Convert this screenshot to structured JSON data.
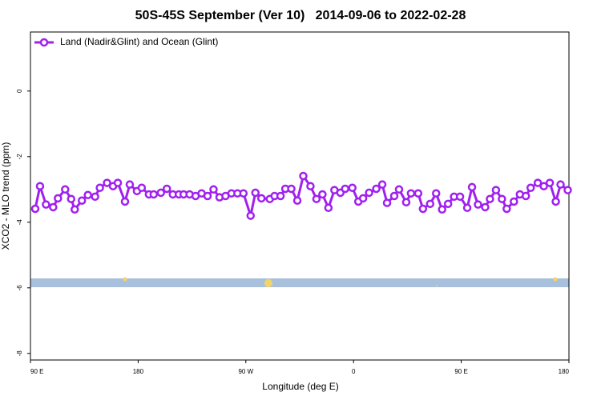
{
  "chart_data": {
    "type": "line",
    "title": "50S-45S September (Ver 10)   2014-09-06 to 2022-02-28",
    "xlabel": "Longitude (deg E)",
    "ylabel": "XCO2 - MLO trend (ppm)",
    "legend": "upper left",
    "xlim": [
      90,
      540
    ],
    "ylim": [
      -8.2,
      1.8
    ],
    "xticks": [
      {
        "value": 90,
        "label": "90 E"
      },
      180,
      {
        "value": 270,
        "label": "90 W"
      },
      {
        "value": 360,
        "label": "0"
      },
      {
        "value": 450,
        "label": "90 E"
      },
      {
        "value": 540,
        "label": "180"
      }
    ],
    "yticks": [
      0,
      -2,
      -4,
      -6,
      -8
    ],
    "x": [
      94,
      98,
      103,
      109,
      113,
      119,
      124,
      127,
      133,
      138,
      144,
      148,
      154,
      159,
      163,
      169,
      173,
      179,
      183,
      189,
      193,
      199,
      204,
      209,
      214,
      218,
      223,
      228,
      233,
      238,
      243,
      248,
      253,
      258,
      263,
      268,
      274,
      278,
      283,
      290,
      294,
      299,
      303,
      308,
      313,
      318,
      324,
      329,
      334,
      339,
      344,
      349,
      353,
      359,
      364,
      368,
      373,
      379,
      384,
      388,
      394,
      398,
      404,
      408,
      414,
      418,
      424,
      429,
      434,
      439,
      444,
      449,
      455,
      459,
      464,
      470,
      474,
      479,
      484,
      488,
      494,
      499,
      504,
      508,
      514,
      519,
      524,
      529,
      533,
      539
    ],
    "series": [
      {
        "name": "Land (Nadir&Glint) and Ocean (Glint)",
        "color": "#a020f0",
        "values": [
          -3.59,
          -2.9,
          -3.46,
          -3.54,
          -3.27,
          -3.0,
          -3.29,
          -3.61,
          -3.34,
          -3.17,
          -3.22,
          -2.95,
          -2.8,
          -2.9,
          -2.8,
          -3.37,
          -2.85,
          -3.05,
          -2.95,
          -3.15,
          -3.15,
          -3.1,
          -2.98,
          -3.15,
          -3.15,
          -3.15,
          -3.15,
          -3.2,
          -3.12,
          -3.2,
          -3.0,
          -3.24,
          -3.2,
          -3.12,
          -3.12,
          -3.12,
          -3.8,
          -3.1,
          -3.27,
          -3.29,
          -3.2,
          -3.2,
          -2.98,
          -2.98,
          -3.34,
          -2.59,
          -2.9,
          -3.29,
          -3.15,
          -3.56,
          -3.02,
          -3.1,
          -2.98,
          -2.95,
          -3.37,
          -3.27,
          -3.1,
          -2.98,
          -2.85,
          -3.41,
          -3.2,
          -3.0,
          -3.39,
          -3.12,
          -3.12,
          -3.59,
          -3.44,
          -3.12,
          -3.61,
          -3.44,
          -3.22,
          -3.22,
          -3.56,
          -2.93,
          -3.46,
          -3.54,
          -3.29,
          -3.02,
          -3.29,
          -3.59,
          -3.37,
          -3.15,
          -3.2,
          -2.95,
          -2.8,
          -2.9,
          -2.8,
          -3.37,
          -2.85,
          -3.02
        ]
      }
    ]
  }
}
